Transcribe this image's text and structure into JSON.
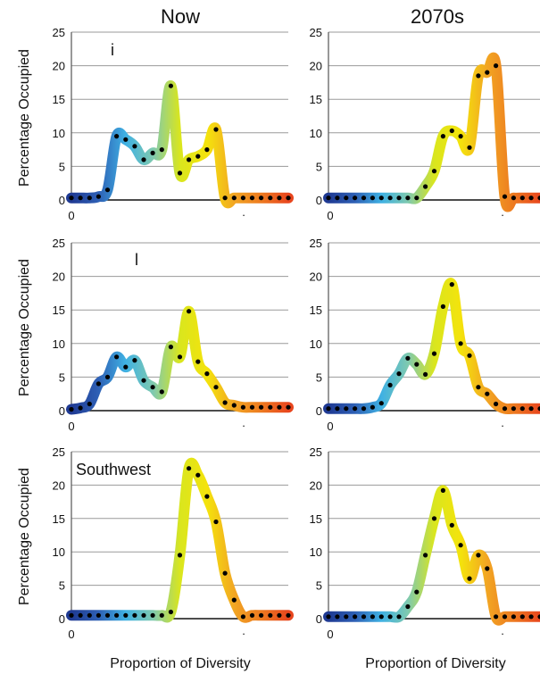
{
  "columns": [
    "Now",
    "2070s"
  ],
  "ylabel": "Percentage Occupied",
  "xlabel": "Proportion of Diversity",
  "yticks": [
    "0",
    "5",
    "10",
    "15",
    "20",
    "25"
  ],
  "xtick_start": "0",
  "xtick_end": ".",
  "chart_data": [
    {
      "type": "line",
      "panel_label": "i",
      "column": "Now",
      "ylim": [
        0,
        25
      ],
      "grid": true,
      "x": [
        0,
        1,
        2,
        3,
        4,
        5,
        6,
        7,
        8,
        9,
        10,
        11,
        12,
        13,
        14,
        15,
        16,
        17,
        18,
        19,
        20,
        21,
        22,
        23,
        24
      ],
      "y": [
        0.3,
        0.3,
        0.3,
        0.5,
        1.5,
        9.5,
        9,
        8,
        6,
        7,
        7.5,
        17,
        4,
        6,
        6.5,
        7.5,
        10.5,
        0.3,
        0.3,
        0.3,
        0.3,
        0.3,
        0.3,
        0.3,
        0.3
      ]
    },
    {
      "type": "line",
      "panel_label": "",
      "column": "2070s",
      "ylim": [
        0,
        25
      ],
      "grid": true,
      "x": [
        0,
        1,
        2,
        3,
        4,
        5,
        6,
        7,
        8,
        9,
        10,
        11,
        12,
        13,
        14,
        15,
        16,
        17,
        18,
        19,
        20,
        21,
        22,
        23,
        24
      ],
      "y": [
        0.3,
        0.3,
        0.3,
        0.3,
        0.3,
        0.3,
        0.3,
        0.3,
        0.3,
        0.3,
        0.3,
        2,
        4.3,
        9.5,
        10.3,
        9.5,
        7.8,
        18.5,
        19,
        20,
        0.5,
        0.3,
        0.3,
        0.3,
        0.3
      ]
    },
    {
      "type": "line",
      "panel_label": "l",
      "column": "Now",
      "ylim": [
        0,
        25
      ],
      "grid": true,
      "x": [
        0,
        1,
        2,
        3,
        4,
        5,
        6,
        7,
        8,
        9,
        10,
        11,
        12,
        13,
        14,
        15,
        16,
        17,
        18,
        19,
        20,
        21,
        22,
        23,
        24
      ],
      "y": [
        0.2,
        0.4,
        1,
        4,
        5,
        8,
        6.5,
        7.5,
        4.5,
        3.5,
        2.8,
        9.5,
        8,
        14.8,
        7.3,
        5.5,
        3.5,
        1.2,
        0.8,
        0.5,
        0.5,
        0.5,
        0.5,
        0.5,
        0.5
      ]
    },
    {
      "type": "line",
      "panel_label": "",
      "column": "2070s",
      "ylim": [
        0,
        25
      ],
      "grid": true,
      "x": [
        0,
        1,
        2,
        3,
        4,
        5,
        6,
        7,
        8,
        9,
        10,
        11,
        12,
        13,
        14,
        15,
        16,
        17,
        18,
        19,
        20,
        21,
        22,
        23,
        24
      ],
      "y": [
        0.3,
        0.3,
        0.3,
        0.3,
        0.3,
        0.5,
        1.1,
        3.8,
        5.5,
        7.8,
        6.9,
        5.4,
        8.5,
        15.5,
        18.8,
        10,
        8.2,
        3.5,
        2.5,
        1,
        0.3,
        0.3,
        0.3,
        0.3,
        0.3
      ]
    },
    {
      "type": "line",
      "panel_label": "Southwest",
      "column": "Now",
      "ylim": [
        0,
        25
      ],
      "grid": true,
      "x": [
        0,
        1,
        2,
        3,
        4,
        5,
        6,
        7,
        8,
        9,
        10,
        11,
        12,
        13,
        14,
        15,
        16,
        17,
        18,
        19,
        20,
        21,
        22,
        23,
        24
      ],
      "y": [
        0.5,
        0.5,
        0.5,
        0.5,
        0.5,
        0.5,
        0.5,
        0.5,
        0.5,
        0.5,
        0.5,
        1,
        9.5,
        22.5,
        21.5,
        18.3,
        14.5,
        6.8,
        2.8,
        0.3,
        0.5,
        0.5,
        0.5,
        0.5,
        0.5
      ]
    },
    {
      "type": "line",
      "panel_label": "",
      "column": "2070s",
      "ylim": [
        0,
        25
      ],
      "grid": true,
      "x": [
        0,
        1,
        2,
        3,
        4,
        5,
        6,
        7,
        8,
        9,
        10,
        11,
        12,
        13,
        14,
        15,
        16,
        17,
        18,
        19,
        20,
        21,
        22,
        23,
        24
      ],
      "y": [
        0.3,
        0.3,
        0.3,
        0.3,
        0.3,
        0.3,
        0.3,
        0.3,
        0.3,
        1.8,
        4,
        9.5,
        15,
        19.2,
        14,
        11,
        6,
        9.5,
        7.5,
        0.3,
        0.3,
        0.3,
        0.3,
        0.3,
        0.3
      ]
    }
  ],
  "colors": {
    "gradient": [
      "#1f3a93",
      "#2e60b5",
      "#3fb1e3",
      "#7ec9b0",
      "#d9e61e",
      "#f4e30c",
      "#f2a623",
      "#ed7a20",
      "#e8461e"
    ],
    "grid": "#9a9a9a",
    "axis": "#555555",
    "dot": "#000000"
  }
}
